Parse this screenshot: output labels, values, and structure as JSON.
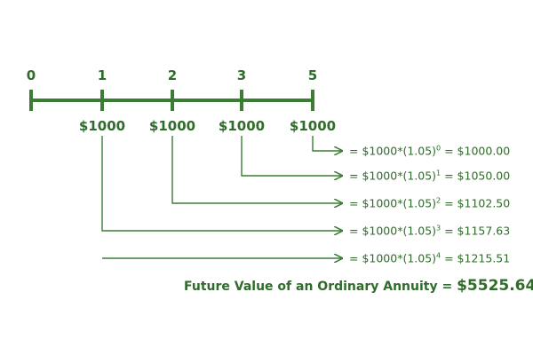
{
  "timeline": {
    "labels": [
      "0",
      "1",
      "2",
      "3",
      "5"
    ],
    "amounts": [
      "$1000",
      "$1000",
      "$1000",
      "$1000"
    ]
  },
  "equations": [
    {
      "base": "= $1000*(1.05)",
      "exponent": "0",
      "result": " = $1000.00"
    },
    {
      "base": "= $1000*(1.05)",
      "exponent": "1",
      "result": " = $1050.00"
    },
    {
      "base": "= $1000*(1.05)",
      "exponent": "2",
      "result": " = $1102.50"
    },
    {
      "base": "= $1000*(1.05)",
      "exponent": "3",
      "result": " = $1157.63"
    },
    {
      "base": "= $1000*(1.05)",
      "exponent": "4",
      "result": " = $1215.51"
    }
  ],
  "total": {
    "label": "Future Value of an Ordinary Annuity =",
    "value": "$5525.64"
  }
}
